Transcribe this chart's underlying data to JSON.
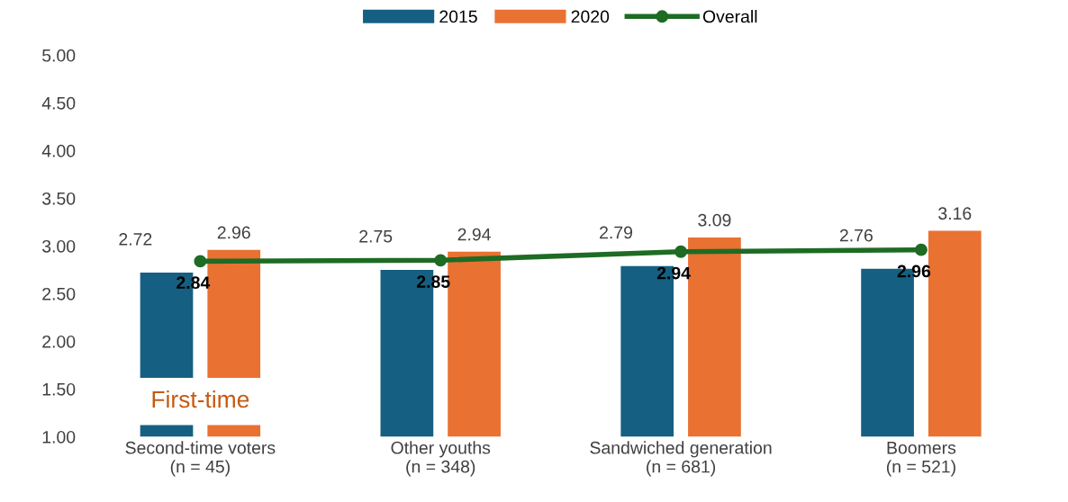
{
  "chart_data": {
    "type": "bar",
    "categories": [
      "Second-time voters\n(n = 45)",
      "Other youths\n(n = 348)",
      "Sandwiched generation\n(n = 681)",
      "Boomers\n(n = 521)"
    ],
    "series": [
      {
        "name": "2015",
        "color": "#156082",
        "values": [
          2.72,
          2.75,
          2.79,
          2.76
        ]
      },
      {
        "name": "2020",
        "color": "#e97132",
        "values": [
          2.96,
          2.94,
          3.09,
          3.16
        ]
      },
      {
        "name": "Overall",
        "type": "line",
        "color": "#1e6b24",
        "values": [
          2.84,
          2.85,
          2.94,
          2.96
        ]
      }
    ],
    "ylim": [
      1,
      5
    ],
    "yticks": [
      {
        "value": 1,
        "label": "1.00"
      },
      {
        "value": 1.5,
        "label": "1.50"
      },
      {
        "value": 2,
        "label": "2.00"
      },
      {
        "value": 2.5,
        "label": "2.50"
      },
      {
        "value": 3,
        "label": "3.00"
      },
      {
        "value": 3.5,
        "label": "3.50"
      },
      {
        "value": 4,
        "label": "4.00"
      },
      {
        "value": 4.5,
        "label": "4.50"
      },
      {
        "value": 5,
        "label": "5.00"
      }
    ],
    "data_labels": true,
    "legend": "top",
    "grid": false,
    "marker": "circle",
    "annotations": [
      "First-time"
    ]
  }
}
